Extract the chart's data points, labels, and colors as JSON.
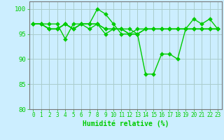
{
  "xlabel": "Humidité relative (%)",
  "background_color": "#cceeff",
  "grid_color": "#aacccc",
  "line_color": "#00cc00",
  "xlim": [
    -0.5,
    23.5
  ],
  "ylim": [
    80,
    101.5
  ],
  "yticks": [
    80,
    85,
    90,
    95,
    100
  ],
  "xtick_labels": [
    "0",
    "1",
    "2",
    "3",
    "4",
    "5",
    "6",
    "7",
    "8",
    "9",
    "10",
    "11",
    "12",
    "13",
    "14",
    "15",
    "16",
    "17",
    "18",
    "19",
    "20",
    "21",
    "22",
    "23"
  ],
  "series": [
    [
      97,
      97,
      97,
      97,
      94,
      97,
      97,
      97,
      100,
      99,
      97,
      95,
      95,
      95,
      87,
      87,
      91,
      91,
      90,
      96,
      98,
      97,
      98,
      96
    ],
    [
      97,
      97,
      96,
      96,
      97,
      96,
      97,
      96,
      97,
      95,
      96,
      96,
      96,
      95,
      96,
      96,
      96,
      96,
      96,
      96,
      96,
      96,
      96,
      96
    ],
    [
      97,
      97,
      96,
      96,
      97,
      96,
      97,
      97,
      97,
      96,
      96,
      96,
      95,
      96,
      96,
      96,
      96,
      96,
      96,
      96,
      96,
      96,
      96,
      96
    ],
    [
      97,
      97,
      96,
      96,
      97,
      96,
      97,
      97,
      97,
      96,
      96,
      96,
      95,
      95,
      96,
      96,
      96,
      96,
      96,
      96,
      96,
      96,
      96,
      96
    ]
  ],
  "marker_size": 3.0,
  "linewidth": 1.0,
  "xlabel_fontsize": 7,
  "tick_fontsize": 5.5,
  "ytick_fontsize": 6.5
}
